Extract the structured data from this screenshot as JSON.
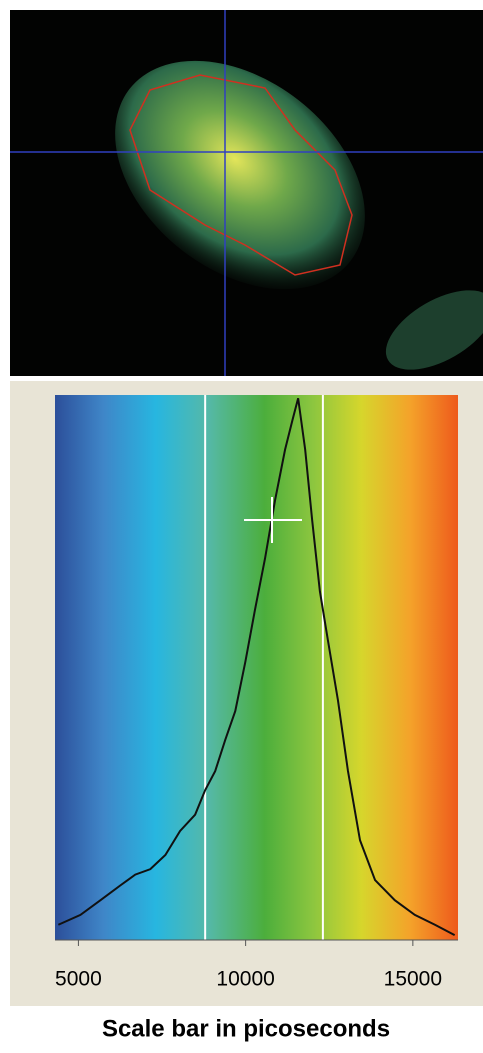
{
  "chart_data": {
    "type": "line",
    "x_label": "Scale bar in picoseconds",
    "x": [
      4400,
      5060,
      5660,
      6250,
      6700,
      7150,
      7600,
      8040,
      8490,
      8790,
      9090,
      9390,
      9690,
      9990,
      10280,
      10580,
      10880,
      11180,
      11400,
      11570,
      11780,
      11990,
      12220,
      12460,
      12760,
      13060,
      13420,
      13870,
      14460,
      15060,
      15660,
      16250
    ],
    "series": [
      {
        "color": "#111111",
        "values": [
          2.8,
          4.6,
          7.3,
          10,
          12,
          13,
          15.6,
          20,
          23,
          27.5,
          31,
          36.7,
          42,
          51,
          60.6,
          70,
          80.7,
          90,
          95.4,
          99.4,
          90,
          77,
          64,
          55,
          44,
          31,
          18.3,
          11,
          7.3,
          4.6,
          2.8,
          0.9
        ]
      }
    ],
    "cursors": [
      8790,
      12310
    ],
    "xlim": [
      4300,
      16350
    ],
    "xticks": [
      5000,
      10000,
      15000
    ],
    "ylim": [
      0,
      100
    ]
  }
}
